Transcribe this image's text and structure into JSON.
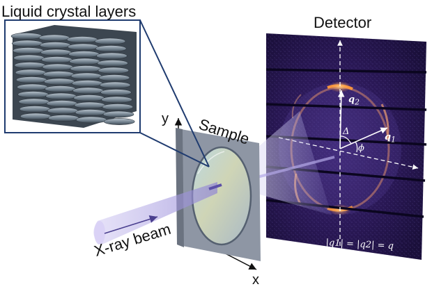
{
  "labels": {
    "lc_layers": "Liquid crystal layers",
    "detector": "Detector",
    "sample": "Sample",
    "xray_beam": "X-ray beam",
    "axis_x": "x",
    "axis_y": "y"
  },
  "detector_symbols": {
    "q1_base": "q",
    "q1_sub": "1",
    "q2_base": "q",
    "q2_sub": "2",
    "delta": "Δ",
    "phi": "ϕ",
    "relation": "|q1| = |q2| = q"
  },
  "colors": {
    "detector_bg": "#1f1140",
    "ring": "#ff9a3c",
    "beam": "#9a8fd6",
    "frame_line": "#1f3b6f",
    "layer_rod": "#7d8c99"
  }
}
